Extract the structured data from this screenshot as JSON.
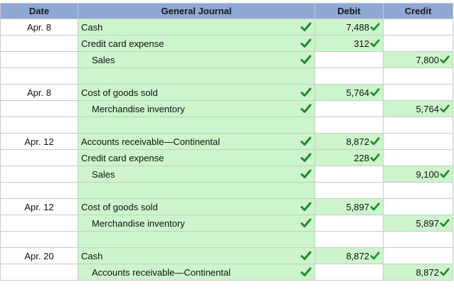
{
  "headers": {
    "date": "Date",
    "journal": "General Journal",
    "debit": "Debit",
    "credit": "Credit"
  },
  "colors": {
    "header_bg": "#8ea8d3",
    "filled_bg": "#ccf5cc",
    "check": "#1f8a2a"
  },
  "rows": [
    {
      "date": "Apr. 8",
      "account": "Cash",
      "indent": false,
      "debit": "7,488",
      "credit": ""
    },
    {
      "date": "",
      "account": "Credit card expense",
      "indent": false,
      "debit": "312",
      "credit": ""
    },
    {
      "date": "",
      "account": "Sales",
      "indent": true,
      "debit": "",
      "credit": "7,800"
    },
    {
      "date": "",
      "account": "",
      "indent": false,
      "debit": "",
      "credit": "",
      "blank": true
    },
    {
      "date": "Apr. 8",
      "account": "Cost of goods sold",
      "indent": false,
      "debit": "5,764",
      "credit": ""
    },
    {
      "date": "",
      "account": "Merchandise inventory",
      "indent": true,
      "debit": "",
      "credit": "5,764"
    },
    {
      "date": "",
      "account": "",
      "indent": false,
      "debit": "",
      "credit": "",
      "blank": true
    },
    {
      "date": "Apr. 12",
      "account": "Accounts receivable—Continental",
      "indent": false,
      "debit": "8,872",
      "credit": ""
    },
    {
      "date": "",
      "account": "Credit card expense",
      "indent": false,
      "debit": "228",
      "credit": ""
    },
    {
      "date": "",
      "account": "Sales",
      "indent": true,
      "debit": "",
      "credit": "9,100"
    },
    {
      "date": "",
      "account": "",
      "indent": false,
      "debit": "",
      "credit": "",
      "blank": true
    },
    {
      "date": "Apr. 12",
      "account": "Cost of goods sold",
      "indent": false,
      "debit": "5,897",
      "credit": ""
    },
    {
      "date": "",
      "account": "Merchandise inventory",
      "indent": true,
      "debit": "",
      "credit": "5,897"
    },
    {
      "date": "",
      "account": "",
      "indent": false,
      "debit": "",
      "credit": "",
      "blank": true
    },
    {
      "date": "Apr. 20",
      "account": "Cash",
      "indent": false,
      "debit": "8,872",
      "credit": ""
    },
    {
      "date": "",
      "account": "Accounts receivable—Continental",
      "indent": true,
      "debit": "",
      "credit": "8,872"
    }
  ]
}
